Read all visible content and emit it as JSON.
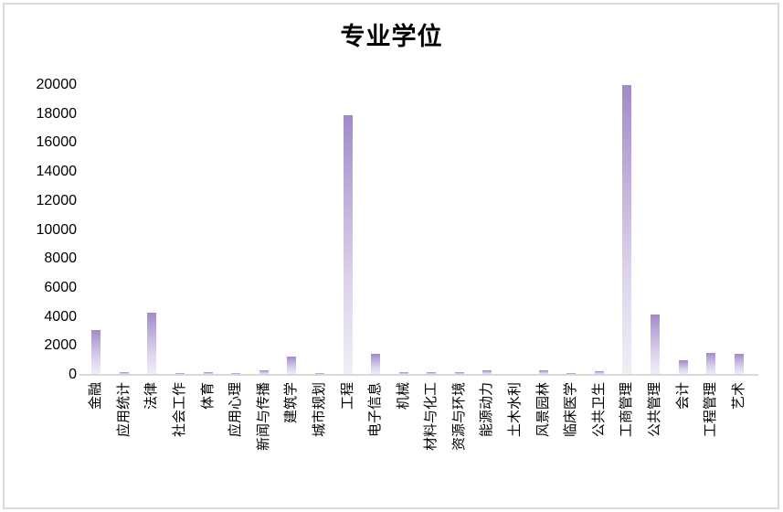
{
  "chart_data": {
    "type": "bar",
    "title": "专业学位",
    "xlabel": "",
    "ylabel": "",
    "categories": [
      "金融",
      "应用统计",
      "法律",
      "社会工作",
      "体育",
      "应用心理",
      "新闻与传播",
      "建筑学",
      "城市规划",
      "工程",
      "电子信息",
      "机械",
      "材料与化工",
      "资源与环境",
      "能源动力",
      "土木水利",
      "风景园林",
      "临床医学",
      "公共卫生",
      "工商管理",
      "公共管理",
      "会计",
      "工程管理",
      "艺术"
    ],
    "values": [
      3100,
      200,
      4300,
      150,
      160,
      150,
      330,
      1260,
      130,
      17900,
      1470,
      180,
      190,
      180,
      320,
      50,
      320,
      130,
      230,
      20000,
      4150,
      990,
      1500,
      1460
    ],
    "ylim": [
      0,
      20000
    ],
    "ytick_step": 2000,
    "grid": false,
    "legend": false,
    "colors": {
      "bar_gradient_top": "#a28acb",
      "bar_gradient_upper_mid": "#b9a8d8",
      "bar_gradient_lower_mid": "#ddd4ec",
      "bar_gradient_bottom": "#f1eef7",
      "axis_line": "#d9d9d9",
      "border": "#d9d9d9",
      "text": "#000000",
      "background": "#ffffff"
    }
  }
}
